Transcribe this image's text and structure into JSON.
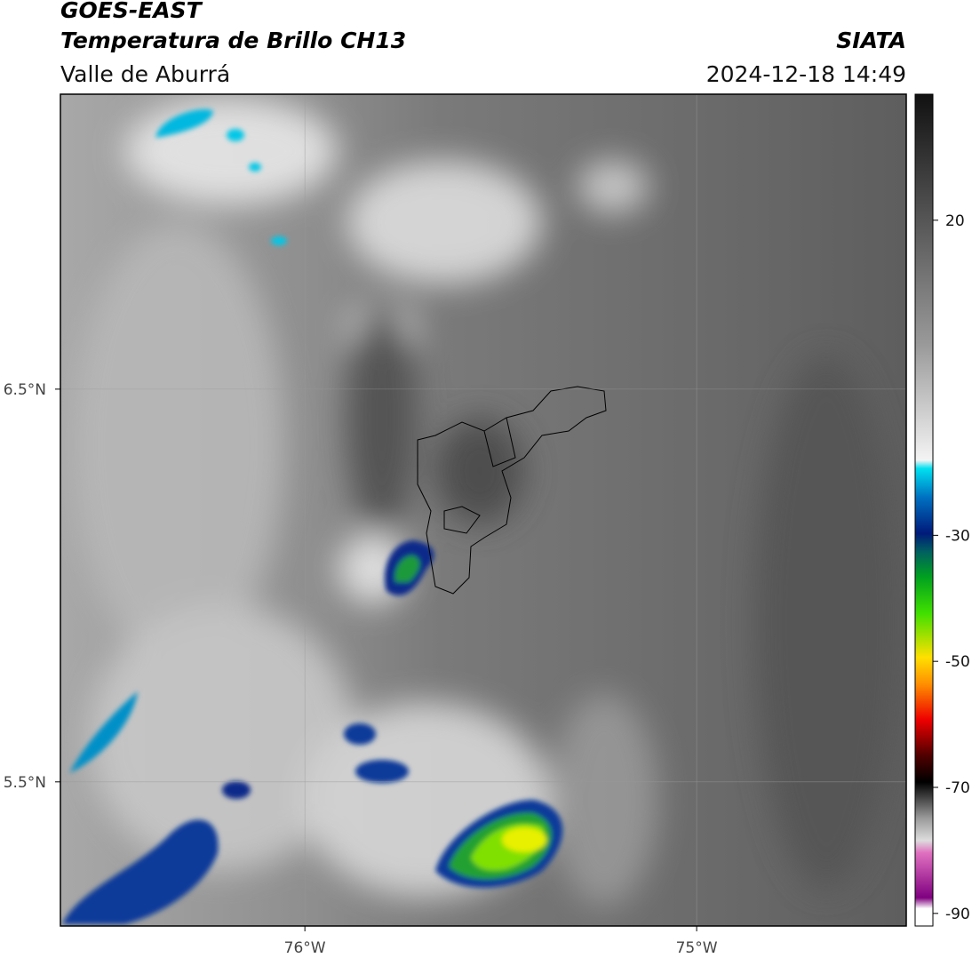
{
  "header": {
    "satellite": "GOES-EAST",
    "product": "Temperatura de Brillo CH13",
    "region": "Valle de Aburrá",
    "source": "SIATA",
    "timestamp": "2024-12-18 14:49"
  },
  "map": {
    "xlim": [
      -76.624,
      -74.465
    ],
    "ylim": [
      5.133,
      7.251
    ],
    "xticks": [
      {
        "value": -76,
        "label": "76°W"
      },
      {
        "value": -75,
        "label": "75°W"
      }
    ],
    "yticks": [
      {
        "value": 5.5,
        "label": "5.5°N"
      },
      {
        "value": 6.5,
        "label": "6.5°N"
      }
    ],
    "grid": true
  },
  "colorbar": {
    "lim": [
      -92,
      40
    ],
    "ticks": [
      -90,
      -70,
      -50,
      -30,
      20
    ]
  }
}
